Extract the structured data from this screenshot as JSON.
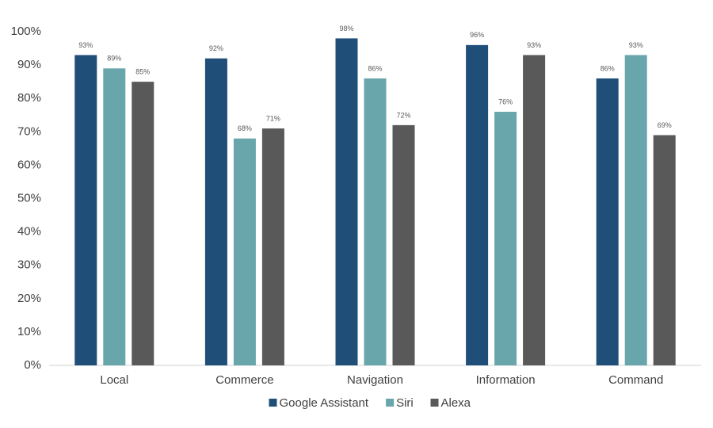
{
  "chart_data": {
    "type": "bar",
    "categories": [
      "Local",
      "Commerce",
      "Navigation",
      "Information",
      "Command"
    ],
    "series": [
      {
        "name": "Google Assistant",
        "color": "#1f4e79",
        "values": [
          93,
          92,
          98,
          96,
          86
        ],
        "value_labels": [
          "93%",
          "92%",
          "98%",
          "96%",
          "86%"
        ]
      },
      {
        "name": "Siri",
        "color": "#68a6ac",
        "values": [
          89,
          68,
          86,
          76,
          93
        ],
        "value_labels": [
          "89%",
          "68%",
          "86%",
          "76%",
          "93%"
        ]
      },
      {
        "name": "Alexa",
        "color": "#595959",
        "values": [
          85,
          71,
          72,
          93,
          69
        ],
        "value_labels": [
          "85%",
          "71%",
          "72%",
          "93%",
          "69%"
        ]
      }
    ],
    "ylim": [
      0,
      100
    ],
    "yticks": [
      {
        "value": 0,
        "label": "0%"
      },
      {
        "value": 10,
        "label": "10%"
      },
      {
        "value": 20,
        "label": "20%"
      },
      {
        "value": 30,
        "label": "30%"
      },
      {
        "value": 40,
        "label": "40%"
      },
      {
        "value": 50,
        "label": "50%"
      },
      {
        "value": 60,
        "label": "60%"
      },
      {
        "value": 70,
        "label": "70%"
      },
      {
        "value": 80,
        "label": "80%"
      },
      {
        "value": 90,
        "label": "90%"
      },
      {
        "value": 100,
        "label": "100%"
      }
    ],
    "grid": false,
    "legend": "bottom"
  }
}
